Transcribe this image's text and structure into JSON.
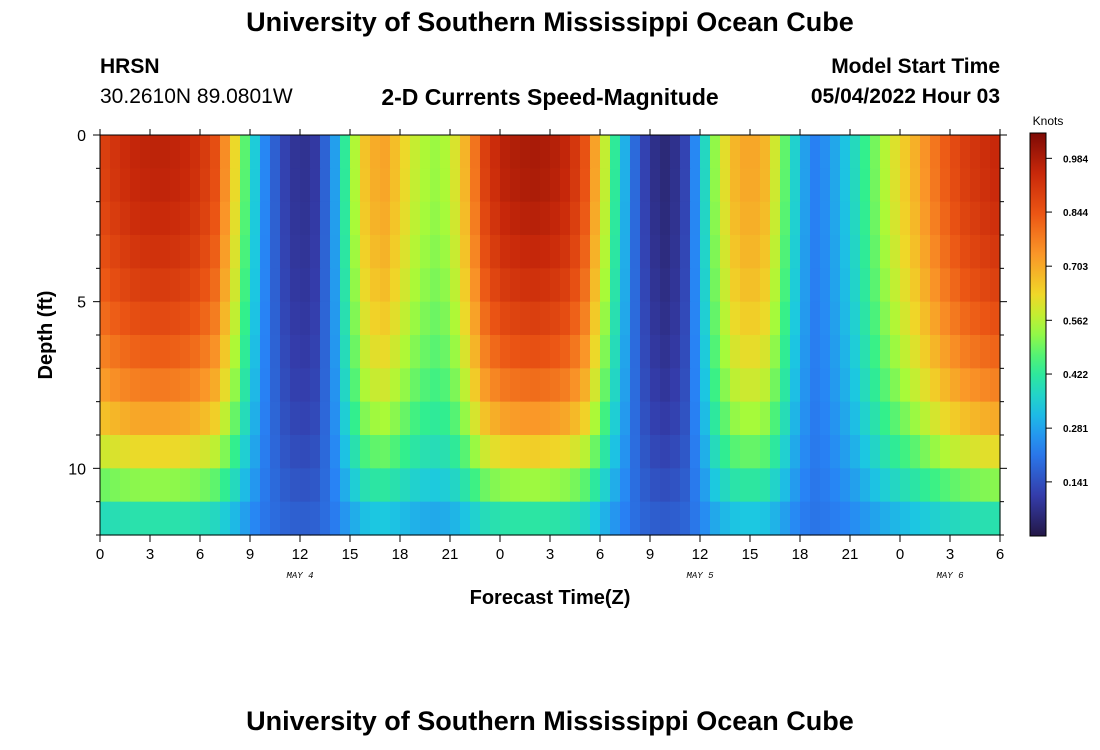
{
  "header": {
    "title": "University of Southern Mississippi Ocean Cube",
    "station": "HRSN",
    "coordinates": "30.2610N  89.0801W",
    "chart_title": "2-D Currents Speed-Magnitude",
    "model_label": "Model Start Time",
    "model_start": "05/04/2022 Hour 03"
  },
  "footer": {
    "title": "University of Southern Mississippi Ocean Cube"
  },
  "chart_data": {
    "type": "heatmap",
    "title": "2-D Currents Speed-Magnitude",
    "xlabel": "Forecast Time(Z)",
    "ylabel": "Depth (ft)",
    "xlim": [
      0,
      54
    ],
    "ylim": [
      0,
      12
    ],
    "y_reversed": true,
    "x_tick_labels": [
      "0",
      "3",
      "6",
      "9",
      "12",
      "15",
      "18",
      "21",
      "0",
      "3",
      "6",
      "9",
      "12",
      "15",
      "18",
      "21",
      "0",
      "3",
      "6"
    ],
    "y_ticks": [
      0,
      5,
      10
    ],
    "date_labels": [
      {
        "text": "MAY 4",
        "x": 12
      },
      {
        "text": "MAY 5",
        "x": 36
      },
      {
        "text": "MAY 6",
        "x": 51
      }
    ],
    "colorbar": {
      "label": "Knots",
      "min": 0.0,
      "max": 1.05,
      "ticks": [
        "0.984",
        "0.844",
        "0.703",
        "0.562",
        "0.422",
        "0.281",
        "0.141"
      ],
      "colormap": "turbo"
    },
    "speed_profile_knots": {
      "x_hours": [
        0,
        1,
        2,
        3,
        4,
        5,
        6,
        7,
        8,
        9,
        10,
        11,
        12,
        13,
        14,
        15,
        16,
        17,
        18,
        19,
        20,
        21,
        22,
        23,
        24,
        25,
        26,
        27,
        28,
        29,
        30,
        31,
        32,
        33,
        34,
        35,
        36,
        37,
        38,
        39,
        40,
        41,
        42,
        43,
        44,
        45,
        46,
        47,
        48,
        49,
        50,
        51,
        52,
        53,
        54
      ],
      "values": [
        0.88,
        0.92,
        0.95,
        0.96,
        0.96,
        0.95,
        0.92,
        0.85,
        0.65,
        0.4,
        0.22,
        0.12,
        0.07,
        0.1,
        0.25,
        0.5,
        0.68,
        0.72,
        0.65,
        0.57,
        0.53,
        0.56,
        0.7,
        0.88,
        0.96,
        0.98,
        0.99,
        0.98,
        0.95,
        0.87,
        0.65,
        0.4,
        0.2,
        0.08,
        0.05,
        0.1,
        0.3,
        0.55,
        0.68,
        0.72,
        0.68,
        0.5,
        0.3,
        0.22,
        0.28,
        0.35,
        0.45,
        0.55,
        0.63,
        0.7,
        0.78,
        0.85,
        0.9,
        0.93,
        0.95
      ]
    },
    "depth_factor": {
      "depths_ft": [
        0,
        1,
        2,
        3,
        4,
        5,
        6,
        7,
        8,
        9,
        10,
        11,
        12
      ],
      "factor": [
        1.0,
        1.0,
        0.99,
        0.97,
        0.95,
        0.92,
        0.88,
        0.84,
        0.78,
        0.7,
        0.6,
        0.48,
        0.35
      ]
    }
  }
}
